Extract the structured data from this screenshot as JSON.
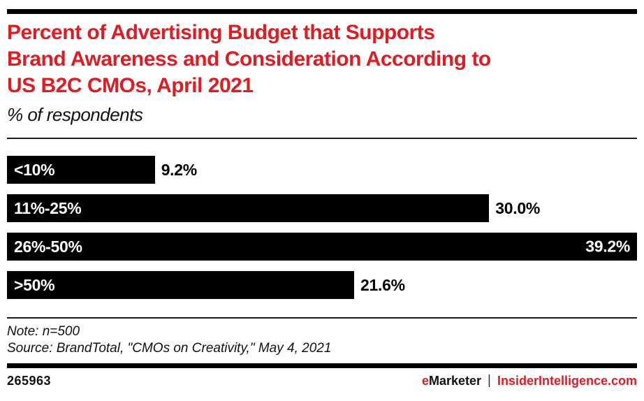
{
  "title_lines": [
    "Percent of Advertising Budget that Supports",
    "Brand Awareness and Consideration According to",
    "US B2C CMOs, April 2021"
  ],
  "subtitle": "% of respondents",
  "chart_data": {
    "type": "bar",
    "orientation": "horizontal",
    "title": "Percent of Advertising Budget that Supports Brand Awareness and Consideration According to US B2C CMOs, April 2021",
    "xlabel": "% of respondents",
    "categories": [
      "<10%",
      "11%-25%",
      "26%-50%",
      ">50%"
    ],
    "values": [
      9.2,
      30.0,
      39.2,
      21.6
    ],
    "value_labels": [
      "9.2%",
      "30.0%",
      "39.2%",
      "21.6%"
    ],
    "xlim": [
      0,
      39.2
    ],
    "bar_color": "#000000",
    "category_label_color": "#ffffff",
    "label_inside": [
      false,
      false,
      true,
      false
    ],
    "grid": false,
    "legend": false
  },
  "note": "Note: n=500",
  "source": "Source: BrandTotal, \"CMOs on Creativity,\" May 4, 2021",
  "footer": {
    "chart_id": "265963",
    "brand_e": "e",
    "brand_rest": "Marketer",
    "separator": "|",
    "site": "InsiderIntelligence.com"
  },
  "colors": {
    "accent_red": "#e01b21",
    "bar_black": "#000000",
    "background": "#ffffff"
  }
}
